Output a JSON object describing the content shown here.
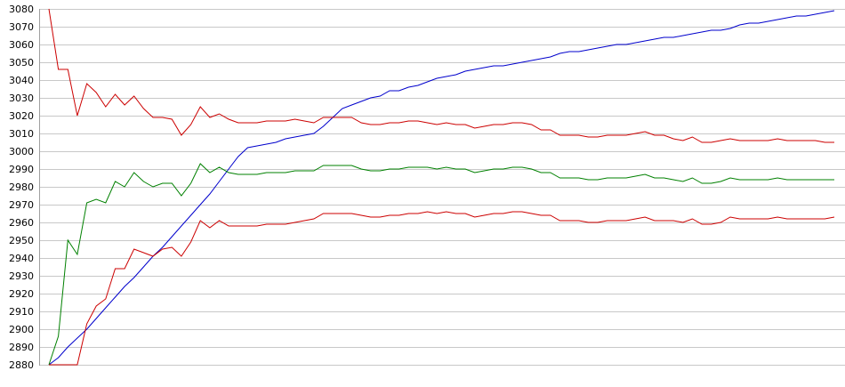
{
  "chart_data": {
    "type": "line",
    "title": "",
    "xlabel": "",
    "ylabel": "",
    "ylim": [
      2880,
      3080
    ],
    "yticks": [
      2880,
      2890,
      2900,
      2910,
      2920,
      2930,
      2940,
      2950,
      2960,
      2970,
      2980,
      2990,
      3000,
      3010,
      3020,
      3030,
      3040,
      3050,
      3060,
      3070,
      3080
    ],
    "grid": true,
    "legend": "none",
    "x": [
      0,
      1,
      2,
      3,
      4,
      5,
      6,
      7,
      8,
      9,
      10,
      11,
      12,
      13,
      14,
      15,
      16,
      17,
      18,
      19,
      20,
      21,
      22,
      23,
      24,
      25,
      26,
      27,
      28,
      29,
      30,
      31,
      32,
      33,
      34,
      35,
      36,
      37,
      38,
      39,
      40,
      41,
      42,
      43,
      44,
      45,
      46,
      47,
      48,
      49,
      50,
      51,
      52,
      53,
      54,
      55,
      56,
      57,
      58,
      59,
      60,
      61,
      62,
      63,
      64,
      65,
      66,
      67,
      68,
      69,
      70,
      71,
      72,
      73,
      74,
      75,
      76,
      77,
      78,
      79,
      80,
      81,
      82,
      83
    ],
    "series": [
      {
        "color": "#0000cc",
        "values": [
          2880,
          2884,
          2890,
          2895,
          2900,
          2906,
          2912,
          2918,
          2924,
          2929,
          2935,
          2941,
          2946,
          2952,
          2958,
          2964,
          2970,
          2976,
          2983,
          2990,
          2997,
          3002,
          3003,
          3004,
          3005,
          3007,
          3008,
          3009,
          3010,
          3014,
          3019,
          3024,
          3026,
          3028,
          3030,
          3031,
          3034,
          3034,
          3036,
          3037,
          3039,
          3041,
          3042,
          3043,
          3045,
          3046,
          3047,
          3048,
          3048,
          3049,
          3050,
          3051,
          3052,
          3053,
          3055,
          3056,
          3056,
          3057,
          3058,
          3059,
          3060,
          3060,
          3061,
          3062,
          3063,
          3064,
          3064,
          3065,
          3066,
          3067,
          3068,
          3068,
          3069,
          3071,
          3072,
          3072,
          3073,
          3074,
          3075,
          3076,
          3076,
          3077,
          3078,
          3079
        ]
      },
      {
        "color": "#cc0000",
        "values": [
          3080,
          3046,
          3046,
          3020,
          3038,
          3033,
          3025,
          3032,
          3026,
          3031,
          3024,
          3019,
          3019,
          3018,
          3009,
          3015,
          3025,
          3019,
          3021,
          3018,
          3016,
          3016,
          3016,
          3017,
          3017,
          3017,
          3018,
          3017,
          3016,
          3019,
          3019,
          3019,
          3019,
          3016,
          3015,
          3015,
          3016,
          3016,
          3017,
          3017,
          3016,
          3015,
          3016,
          3015,
          3015,
          3013,
          3014,
          3015,
          3015,
          3016,
          3016,
          3015,
          3012,
          3012,
          3009,
          3009,
          3009,
          3008,
          3008,
          3009,
          3009,
          3009,
          3010,
          3011,
          3009,
          3009,
          3007,
          3006,
          3008,
          3005,
          3005,
          3006,
          3007,
          3006,
          3006,
          3006,
          3006,
          3007,
          3006,
          3006,
          3006,
          3006,
          3005,
          3005
        ]
      },
      {
        "color": "#008000",
        "values": [
          2880,
          2896,
          2950,
          2942,
          2971,
          2973,
          2971,
          2983,
          2980,
          2988,
          2983,
          2980,
          2982,
          2982,
          2975,
          2982,
          2993,
          2988,
          2991,
          2988,
          2987,
          2987,
          2987,
          2988,
          2988,
          2988,
          2989,
          2989,
          2989,
          2992,
          2992,
          2992,
          2992,
          2990,
          2989,
          2989,
          2990,
          2990,
          2991,
          2991,
          2991,
          2990,
          2991,
          2990,
          2990,
          2988,
          2989,
          2990,
          2990,
          2991,
          2991,
          2990,
          2988,
          2988,
          2985,
          2985,
          2985,
          2984,
          2984,
          2985,
          2985,
          2985,
          2986,
          2987,
          2985,
          2985,
          2984,
          2983,
          2985,
          2982,
          2982,
          2983,
          2985,
          2984,
          2984,
          2984,
          2984,
          2985,
          2984,
          2984,
          2984,
          2984,
          2984,
          2984
        ]
      },
      {
        "color": "#cc0000",
        "values": [
          2880,
          2880,
          2880,
          2880,
          2903,
          2913,
          2917,
          2934,
          2934,
          2945,
          2943,
          2941,
          2945,
          2946,
          2941,
          2949,
          2961,
          2957,
          2961,
          2958,
          2958,
          2958,
          2958,
          2959,
          2959,
          2959,
          2960,
          2961,
          2962,
          2965,
          2965,
          2965,
          2965,
          2964,
          2963,
          2963,
          2964,
          2964,
          2965,
          2965,
          2966,
          2965,
          2966,
          2965,
          2965,
          2963,
          2964,
          2965,
          2965,
          2966,
          2966,
          2965,
          2964,
          2964,
          2961,
          2961,
          2961,
          2960,
          2960,
          2961,
          2961,
          2961,
          2962,
          2963,
          2961,
          2961,
          2961,
          2960,
          2962,
          2959,
          2959,
          2960,
          2963,
          2962,
          2962,
          2962,
          2962,
          2963,
          2962,
          2962,
          2962,
          2962,
          2962,
          2963
        ]
      }
    ]
  }
}
